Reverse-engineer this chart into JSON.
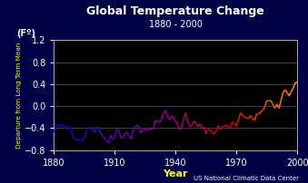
{
  "title": "Global Temperature Change",
  "subtitle": "1880 - 2000",
  "xlabel": "Year",
  "ylabel": "Departure from Long Term Mean",
  "ylabel_unit": "(Fº)",
  "source_text": "US National Climatic Data Center",
  "xlim": [
    1880,
    2000
  ],
  "ylim": [
    -0.8,
    1.2
  ],
  "xticks": [
    1880,
    1910,
    1940,
    1970,
    2000
  ],
  "yticks": [
    -0.8,
    -0.4,
    0,
    0.4,
    0.8,
    1.2
  ],
  "background_color": "#000044",
  "axes_color": "#000000",
  "title_color": "#ffffff",
  "subtitle_color": "#ffffff",
  "tick_color": "#ffffff",
  "xlabel_color": "#ffff00",
  "ylabel_color": "#ffff00",
  "unit_color": "#ffffff",
  "grid_color": "#555577",
  "source_color": "#ffffff",
  "border_color": "#0000cc"
}
